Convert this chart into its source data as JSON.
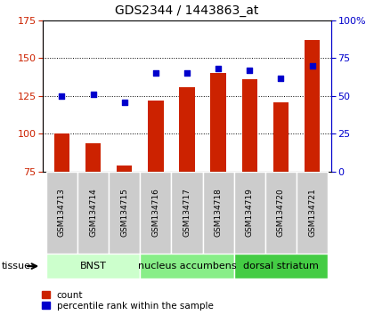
{
  "title": "GDS2344 / 1443863_at",
  "samples": [
    "GSM134713",
    "GSM134714",
    "GSM134715",
    "GSM134716",
    "GSM134717",
    "GSM134718",
    "GSM134719",
    "GSM134720",
    "GSM134721"
  ],
  "count_values": [
    100,
    94,
    79,
    122,
    131,
    140,
    136,
    121,
    162
  ],
  "percentile_values": [
    50,
    51,
    46,
    65,
    65,
    68,
    67,
    62,
    70
  ],
  "ylim_left": [
    75,
    175
  ],
  "ylim_right": [
    0,
    100
  ],
  "yticks_left": [
    75,
    100,
    125,
    150,
    175
  ],
  "yticks_right": [
    0,
    25,
    50,
    75,
    100
  ],
  "bar_color": "#cc2200",
  "dot_color": "#0000cc",
  "bar_bottom": 75,
  "tissue_groups": [
    {
      "label": "BNST",
      "indices": [
        0,
        1,
        2
      ],
      "color": "#ccffcc"
    },
    {
      "label": "nucleus accumbens",
      "indices": [
        3,
        4,
        5
      ],
      "color": "#88ee88"
    },
    {
      "label": "dorsal striatum",
      "indices": [
        6,
        7,
        8
      ],
      "color": "#44cc44"
    }
  ],
  "tissue_label": "tissue",
  "legend_count_label": "count",
  "legend_pct_label": "percentile rank within the sample",
  "bar_width": 0.5,
  "sample_bg_color": "#cccccc",
  "plot_bg_color": "#ffffff"
}
